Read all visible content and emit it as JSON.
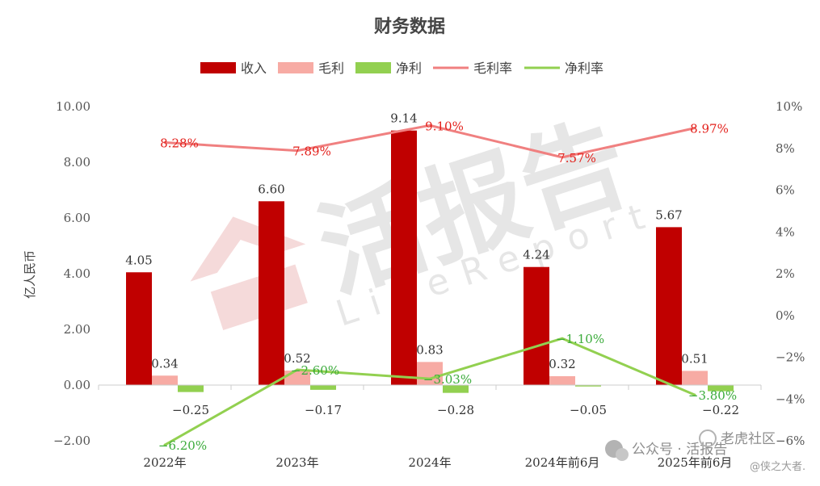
{
  "chart_data": {
    "type": "bar",
    "title": "财务数据",
    "ylabel": "亿人民币",
    "categories": [
      "2022年",
      "2023年",
      "2024年",
      "2024年前6月",
      "2025年前6月"
    ],
    "ylim": [
      -2,
      10
    ],
    "y2lim": [
      -6,
      10
    ],
    "yticks": [
      "10.00",
      "8.00",
      "6.00",
      "4.00",
      "2.00",
      "0.00",
      "−2.00"
    ],
    "y2ticks": [
      "10%",
      "8%",
      "6%",
      "4%",
      "2%",
      "0%",
      "−2%",
      "−4%",
      "−6%"
    ],
    "legend_position": "top",
    "series": [
      {
        "name": "收入",
        "kind": "bar",
        "color": "#c00000",
        "values": [
          4.05,
          6.6,
          9.14,
          4.24,
          5.67
        ],
        "labels": [
          "4.05",
          "6.60",
          "9.14",
          "4.24",
          "5.67"
        ]
      },
      {
        "name": "毛利",
        "kind": "bar",
        "color": "#f7aba4",
        "values": [
          0.34,
          0.52,
          0.83,
          0.32,
          0.51
        ],
        "labels": [
          "0.34",
          "0.52",
          "0.83",
          "0.32",
          "0.51"
        ]
      },
      {
        "name": "净利",
        "kind": "bar",
        "color": "#92d050",
        "values": [
          -0.25,
          -0.17,
          -0.28,
          -0.05,
          -0.22
        ],
        "labels": [
          "−0.25",
          "−0.17",
          "−0.28",
          "−0.05",
          "−0.22"
        ]
      },
      {
        "name": "毛利率",
        "kind": "line",
        "axis": "right",
        "color": "#f08080",
        "values": [
          8.28,
          7.89,
          9.1,
          7.57,
          8.97
        ],
        "labels": [
          "8.28%",
          "7.89%",
          "9.10%",
          "7.57%",
          "8.97%"
        ]
      },
      {
        "name": "净利率",
        "kind": "line",
        "axis": "right",
        "color": "#92d050",
        "values": [
          -6.2,
          -2.6,
          -3.03,
          -1.1,
          -3.8
        ],
        "labels": [
          "−6.20%",
          "−2.60%",
          "−3.03%",
          "−1.10%",
          "−3.80%"
        ]
      }
    ]
  },
  "watermark": {
    "logo_text": "活报告",
    "logo_sub": "LiveReport",
    "wechat_text": "公众号 · 活报告",
    "community_text": "老虎社区",
    "author_text": "@侠之大者."
  }
}
